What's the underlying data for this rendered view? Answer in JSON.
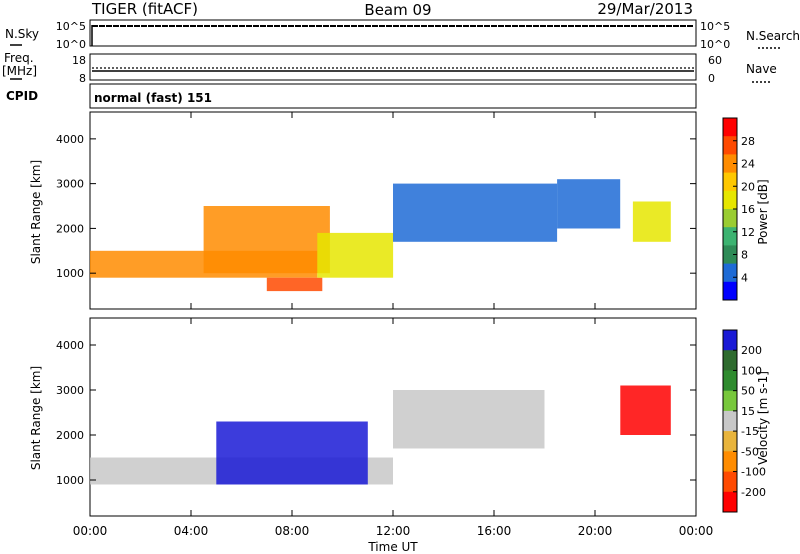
{
  "header": {
    "title": "TIGER (fitACF)",
    "beam": "Beam 09",
    "date": "29/Mar/2013"
  },
  "status_panels": {
    "nsky": {
      "label": "N.Sky",
      "tick_top": "10^5",
      "tick_bottom": "10^0",
      "right_label": "N.Search",
      "right_tick_top": "10^5",
      "right_tick_bottom": "10^0"
    },
    "freq": {
      "label_line1": "Freq.",
      "label_line2": "[MHz]",
      "tick_top": "18",
      "tick_bottom": "8",
      "right_label": "Nave",
      "right_tick_top": "60",
      "right_tick_bottom": "0"
    },
    "cpid": {
      "label": "CPID",
      "value": "normal (fast) 151"
    }
  },
  "x_axis": {
    "label": "Time UT",
    "ticks": [
      "00:00",
      "04:00",
      "08:00",
      "12:00",
      "16:00",
      "20:00",
      "00:00"
    ]
  },
  "chart_data": [
    {
      "type": "heatmap",
      "panel": "power",
      "ylabel": "Slant Range [km]",
      "yticks": [
        1000,
        2000,
        3000,
        4000
      ],
      "ylim": [
        200,
        4600
      ],
      "xlim_hours": [
        0,
        24
      ],
      "colorbar_label": "Power [dB]",
      "colorbar_ticks": [
        "28",
        "24",
        "20",
        "16",
        "12",
        "8",
        "4"
      ],
      "colorbar_colors": [
        "#ff0000",
        "#ff4a00",
        "#ff8c00",
        "#ffc800",
        "#e6e600",
        "#9acd32",
        "#3cb371",
        "#2e8b57",
        "#1e6bd6",
        "#0000ff"
      ],
      "features": [
        {
          "t0": 0.0,
          "t1": 9.0,
          "r0": 900,
          "r1": 1500,
          "value_db": 24
        },
        {
          "t0": 4.5,
          "t1": 9.5,
          "r0": 1000,
          "r1": 2500,
          "value_db": 26
        },
        {
          "t0": 7.0,
          "t1": 9.2,
          "r0": 600,
          "r1": 900,
          "value_db": 28
        },
        {
          "t0": 9.0,
          "t1": 12.0,
          "r0": 900,
          "r1": 1900,
          "value_db": 20
        },
        {
          "t0": 12.0,
          "t1": 18.5,
          "r0": 1700,
          "r1": 3000,
          "value_db": 8
        },
        {
          "t0": 18.5,
          "t1": 21.0,
          "r0": 2000,
          "r1": 3100,
          "value_db": 6
        },
        {
          "t0": 21.5,
          "t1": 23.0,
          "r0": 1700,
          "r1": 2600,
          "value_db": 18
        }
      ]
    },
    {
      "type": "heatmap",
      "panel": "velocity",
      "ylabel": "Slant Range [km]",
      "yticks": [
        1000,
        2000,
        3000,
        4000
      ],
      "ylim": [
        200,
        4600
      ],
      "xlim_hours": [
        0,
        24
      ],
      "colorbar_label": "Velocity [m s-1]",
      "colorbar_ticks": [
        "200",
        "100",
        "50",
        "15",
        "-15",
        "-50",
        "-100",
        "-200"
      ],
      "colorbar_colors": [
        "#1a1ad6",
        "#2e6b2e",
        "#2e8b2e",
        "#78c83c",
        "#c8c8c8",
        "#e8b43c",
        "#ff8c00",
        "#ff4a00",
        "#ff0000"
      ],
      "features": [
        {
          "t0": 0.0,
          "t1": 12.0,
          "r0": 900,
          "r1": 1500,
          "value_ms": 0
        },
        {
          "t0": 5.0,
          "t1": 11.0,
          "r0": 900,
          "r1": 2300,
          "value_ms": 200
        },
        {
          "t0": 12.0,
          "t1": 18.0,
          "r0": 1700,
          "r1": 3000,
          "value_ms": 0
        },
        {
          "t0": 21.0,
          "t1": 23.0,
          "r0": 2000,
          "r1": 3100,
          "value_ms": -200
        }
      ]
    }
  ]
}
